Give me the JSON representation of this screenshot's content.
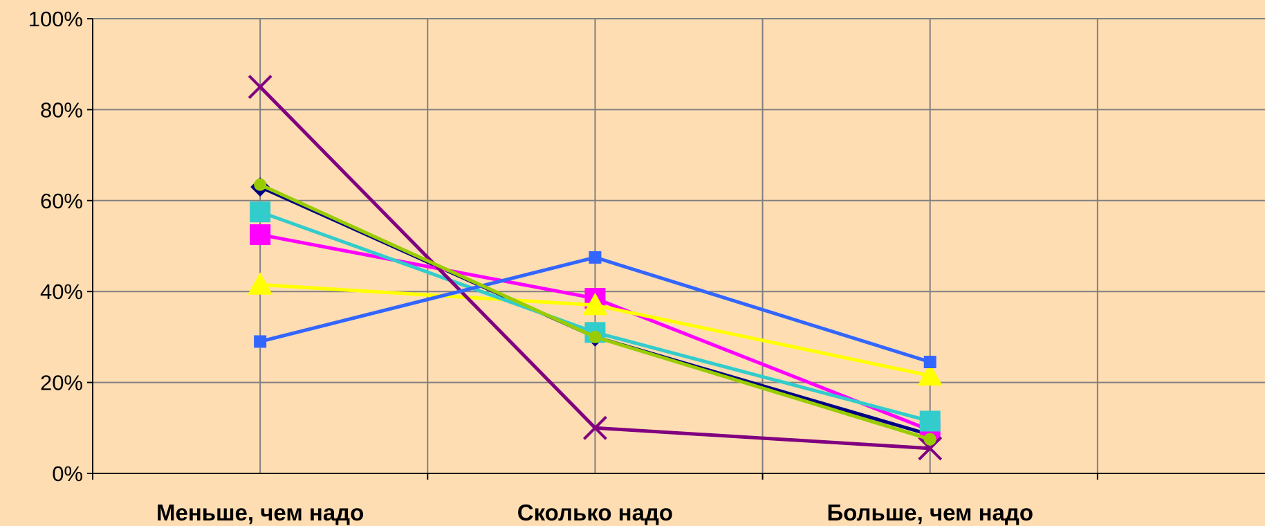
{
  "chart_data": {
    "type": "line",
    "title": "",
    "xlabel": "",
    "ylabel": "",
    "categories": [
      "Меньше, чем надо",
      "Сколько надо",
      "Больше, чем надо"
    ],
    "y_tick_labels": [
      "0%",
      "20%",
      "40%",
      "60%",
      "80%",
      "100%"
    ],
    "ylim": [
      0,
      100
    ],
    "grid": true,
    "legend": "none",
    "series": [
      {
        "values": [
          63,
          30,
          8.5
        ],
        "color": "#000080",
        "marker": "diamond",
        "line_color": "#000080"
      },
      {
        "values": [
          52.5,
          38.5,
          9.5
        ],
        "color": "#FF00FF",
        "marker": "square",
        "line_color": "#FF00FF"
      },
      {
        "values": [
          41.5,
          37,
          21.5
        ],
        "color": "#FFFF00",
        "marker": "triangle",
        "line_color": "#FFFF00"
      },
      {
        "values": [
          57.5,
          31,
          11.5
        ],
        "color": "#33CCCC",
        "marker": "square",
        "line_color": "#33CCCC"
      },
      {
        "values": [
          85,
          10,
          5.5
        ],
        "color": "#800080",
        "marker": "x",
        "line_color": "#800080"
      },
      {
        "values": [
          29,
          47.5,
          24.5
        ],
        "color": "#3366FF",
        "marker": "small-square",
        "line_color": "#3366FF"
      },
      {
        "values": [
          63.5,
          30,
          7.5
        ],
        "color": "#99CC00",
        "marker": "circle",
        "line_color": "#99CC00"
      }
    ]
  }
}
